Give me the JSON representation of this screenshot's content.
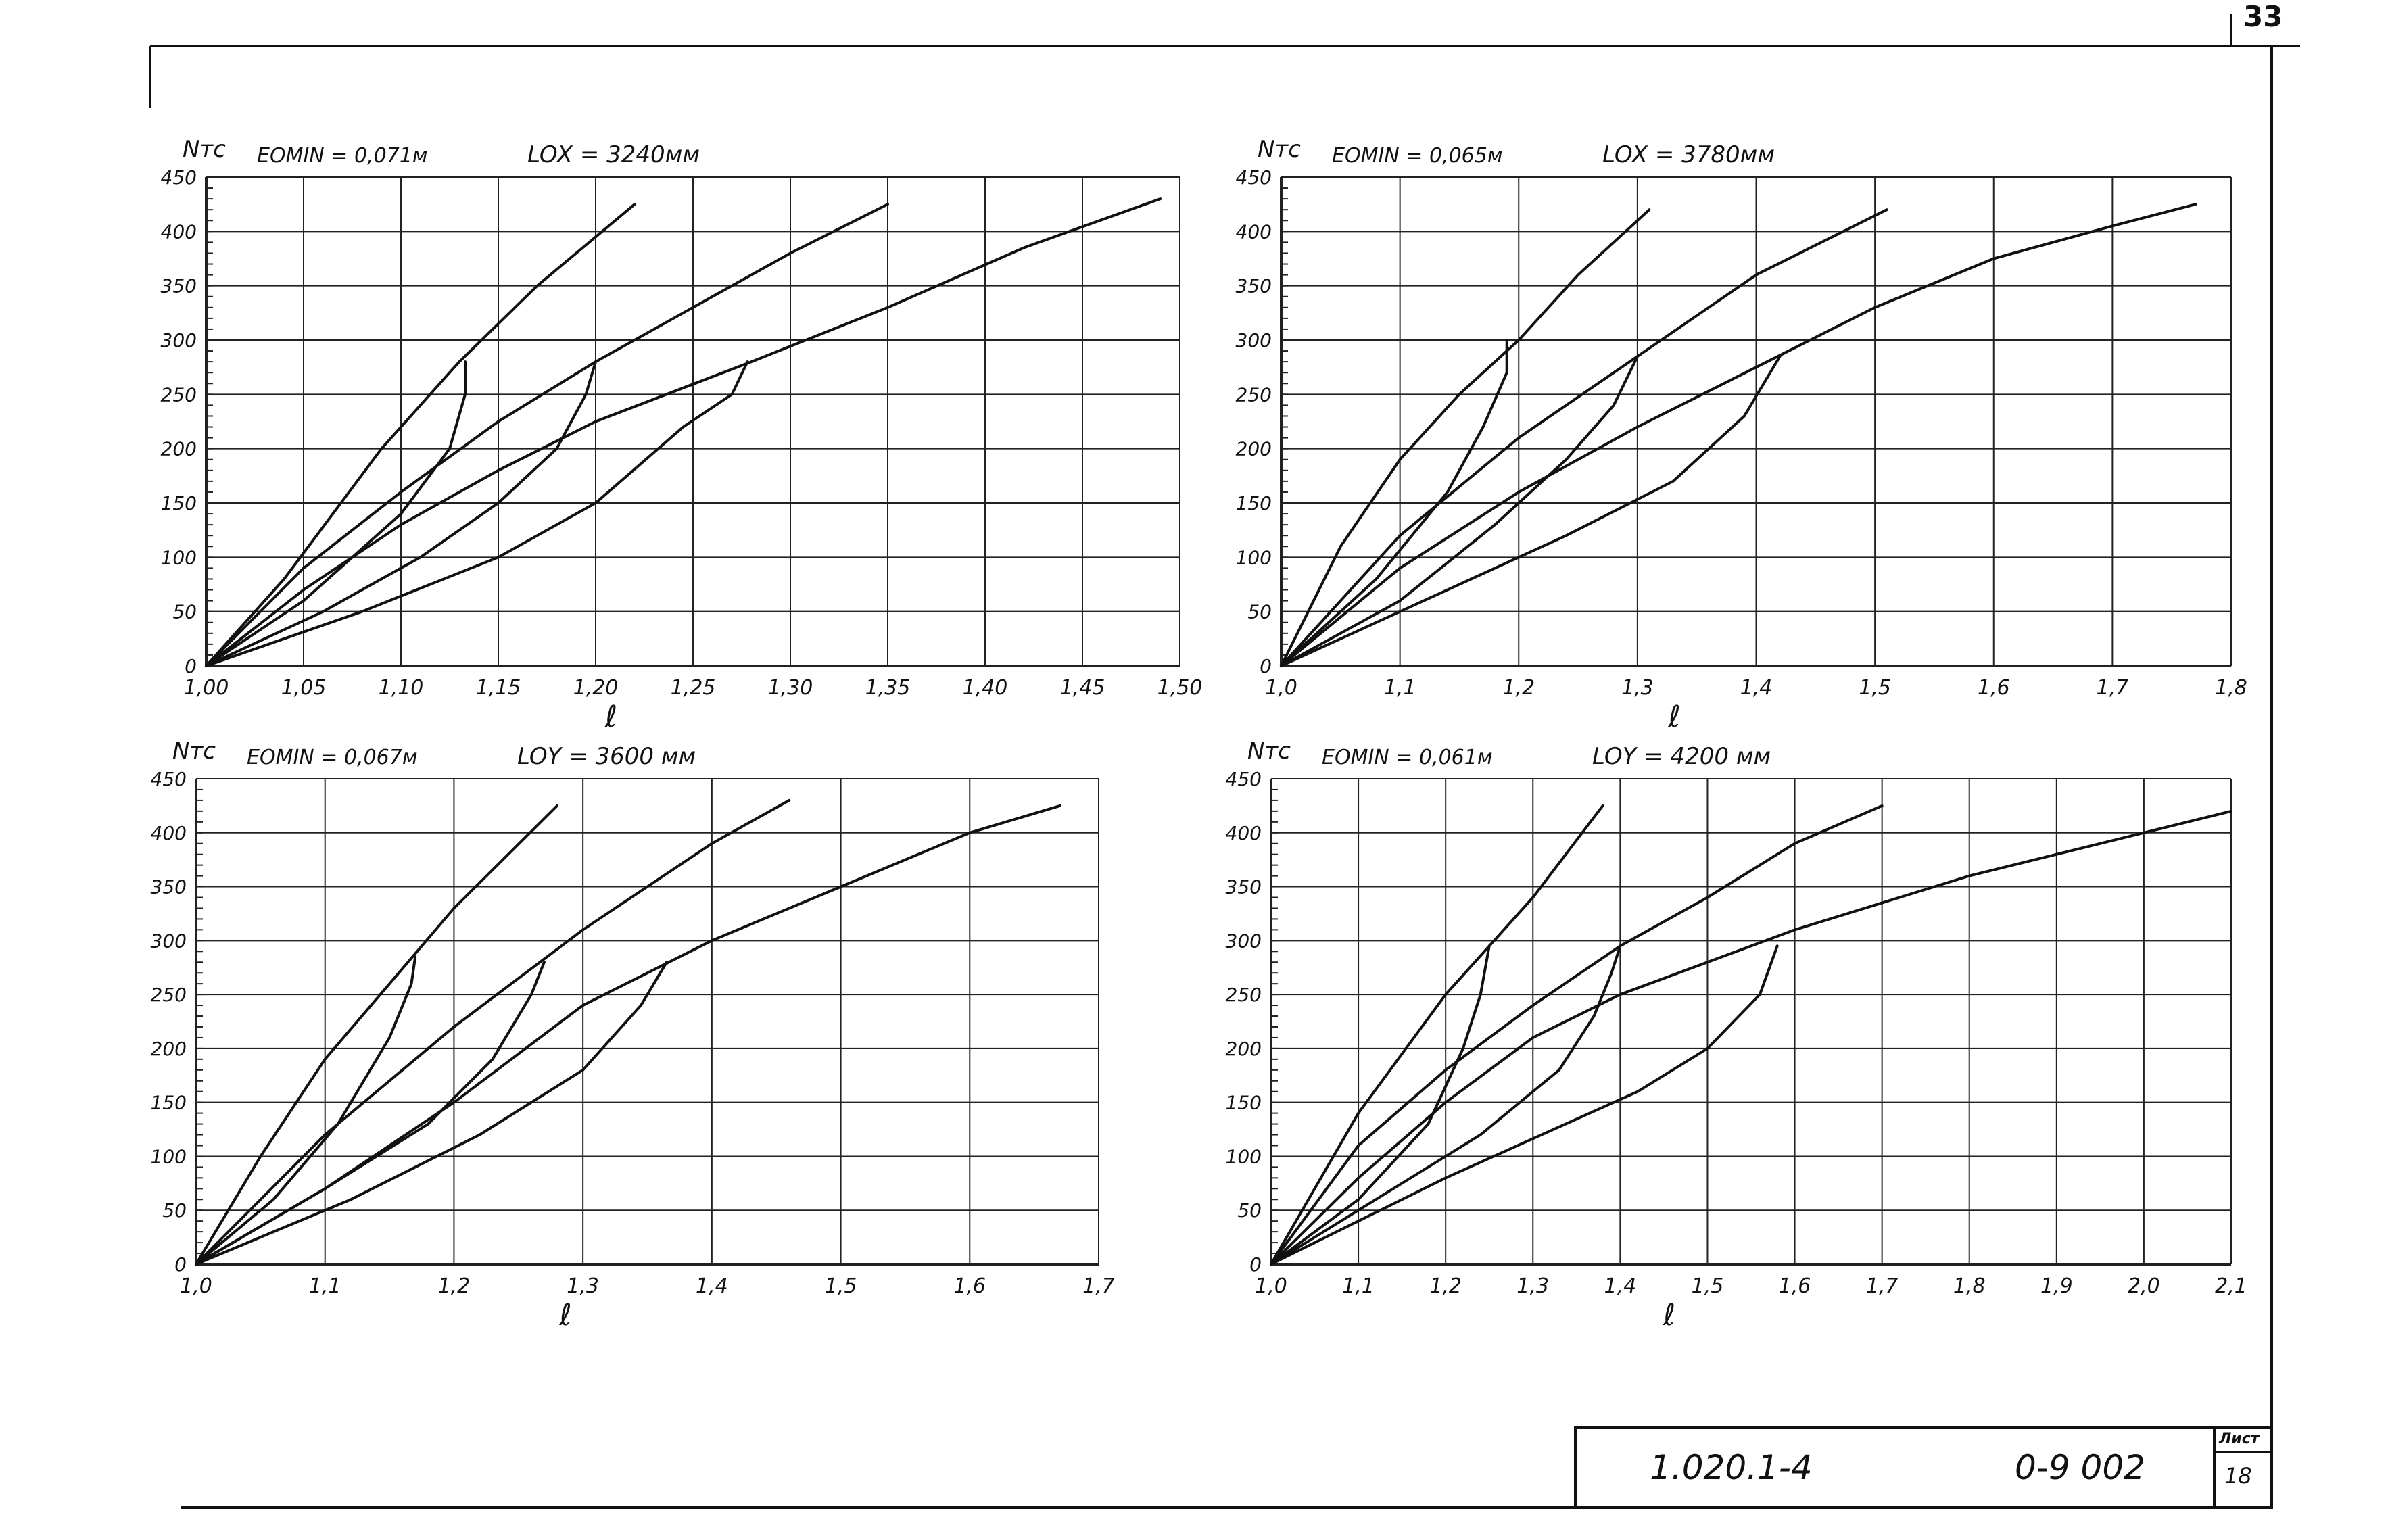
{
  "page_number": "33",
  "title_block": {
    "code_left": "1.020.1-4",
    "code_right": "0-9 002",
    "sheet_label": "Лист",
    "sheet_number": "18"
  },
  "chart_data": [
    {
      "type": "line",
      "ylabel": "Nтс",
      "xlabel": "ℓ",
      "param_left": "EOMIN = 0,071м",
      "param_right": "LOX = 3240мм",
      "xlim": [
        1.0,
        1.5
      ],
      "ylim": [
        0,
        450
      ],
      "x_ticks": [
        1.0,
        1.05,
        1.1,
        1.15,
        1.2,
        1.25,
        1.3,
        1.35,
        1.4,
        1.45,
        1.5
      ],
      "x_tick_labels": [
        "1,00",
        "1,05",
        "1,10",
        "1,15",
        "1,20",
        "1,25",
        "1,30",
        "1,35",
        "1,40",
        "1,45",
        "1,50"
      ],
      "y_ticks": [
        0,
        50,
        100,
        150,
        200,
        250,
        300,
        350,
        400,
        450
      ],
      "y_tick_labels": [
        "0",
        "50",
        "100",
        "150",
        "200",
        "250",
        "300",
        "350",
        "400",
        "450"
      ],
      "grid": true,
      "series": [
        {
          "points": [
            [
              1.0,
              0
            ],
            [
              1.04,
              80
            ],
            [
              1.09,
              200
            ],
            [
              1.13,
              280
            ],
            [
              1.17,
              350
            ],
            [
              1.22,
              425
            ]
          ]
        },
        {
          "points": [
            [
              1.0,
              0
            ],
            [
              1.05,
              90
            ],
            [
              1.1,
              160
            ],
            [
              1.15,
              225
            ],
            [
              1.2,
              280
            ],
            [
              1.25,
              330
            ],
            [
              1.3,
              380
            ],
            [
              1.35,
              425
            ]
          ]
        },
        {
          "points": [
            [
              1.0,
              0
            ],
            [
              1.05,
              70
            ],
            [
              1.1,
              130
            ],
            [
              1.15,
              180
            ],
            [
              1.2,
              225
            ],
            [
              1.28,
              280
            ],
            [
              1.35,
              330
            ],
            [
              1.42,
              385
            ],
            [
              1.49,
              430
            ]
          ]
        },
        {
          "points": [
            [
              1.0,
              0
            ],
            [
              1.05,
              60
            ],
            [
              1.1,
              140
            ],
            [
              1.125,
              200
            ],
            [
              1.133,
              250
            ],
            [
              1.133,
              280
            ]
          ]
        },
        {
          "points": [
            [
              1.0,
              0
            ],
            [
              1.06,
              50
            ],
            [
              1.11,
              100
            ],
            [
              1.15,
              150
            ],
            [
              1.18,
              200
            ],
            [
              1.195,
              250
            ],
            [
              1.2,
              280
            ]
          ]
        },
        {
          "points": [
            [
              1.0,
              0
            ],
            [
              1.08,
              50
            ],
            [
              1.15,
              100
            ],
            [
              1.2,
              150
            ],
            [
              1.245,
              220
            ],
            [
              1.27,
              250
            ],
            [
              1.278,
              280
            ]
          ]
        }
      ]
    },
    {
      "type": "line",
      "ylabel": "Nтс",
      "xlabel": "ℓ",
      "param_left": "EOMIN = 0,065м",
      "param_right": "LOX = 3780мм",
      "xlim": [
        1.0,
        1.8
      ],
      "ylim": [
        0,
        450
      ],
      "x_ticks": [
        1.0,
        1.1,
        1.2,
        1.3,
        1.4,
        1.5,
        1.6,
        1.7,
        1.8
      ],
      "x_tick_labels": [
        "1,0",
        "1,1",
        "1,2",
        "1,3",
        "1,4",
        "1,5",
        "1,6",
        "1,7",
        "1,8"
      ],
      "y_ticks": [
        0,
        50,
        100,
        150,
        200,
        250,
        300,
        350,
        400,
        450
      ],
      "y_tick_labels": [
        "0",
        "50",
        "100",
        "150",
        "200",
        "250",
        "300",
        "350",
        "400",
        "450"
      ],
      "grid": true,
      "series": [
        {
          "points": [
            [
              1.0,
              0
            ],
            [
              1.05,
              110
            ],
            [
              1.1,
              190
            ],
            [
              1.15,
              250
            ],
            [
              1.2,
              300
            ],
            [
              1.25,
              360
            ],
            [
              1.31,
              420
            ]
          ]
        },
        {
          "points": [
            [
              1.0,
              0
            ],
            [
              1.1,
              120
            ],
            [
              1.2,
              210
            ],
            [
              1.3,
              285
            ],
            [
              1.4,
              360
            ],
            [
              1.51,
              420
            ]
          ]
        },
        {
          "points": [
            [
              1.0,
              0
            ],
            [
              1.1,
              90
            ],
            [
              1.2,
              160
            ],
            [
              1.3,
              220
            ],
            [
              1.4,
              275
            ],
            [
              1.5,
              330
            ],
            [
              1.6,
              375
            ],
            [
              1.7,
              405
            ],
            [
              1.77,
              425
            ]
          ]
        },
        {
          "points": [
            [
              1.0,
              0
            ],
            [
              1.08,
              80
            ],
            [
              1.14,
              160
            ],
            [
              1.17,
              220
            ],
            [
              1.19,
              270
            ],
            [
              1.19,
              300
            ]
          ]
        },
        {
          "points": [
            [
              1.0,
              0
            ],
            [
              1.1,
              60
            ],
            [
              1.18,
              130
            ],
            [
              1.24,
              190
            ],
            [
              1.28,
              240
            ],
            [
              1.3,
              285
            ]
          ]
        },
        {
          "points": [
            [
              1.0,
              0
            ],
            [
              1.12,
              60
            ],
            [
              1.24,
              120
            ],
            [
              1.33,
              170
            ],
            [
              1.39,
              230
            ],
            [
              1.42,
              285
            ]
          ]
        }
      ]
    },
    {
      "type": "line",
      "ylabel": "Nтс",
      "xlabel": "ℓ",
      "param_left": "EOMIN = 0,067м",
      "param_right": "LOY = 3600 мм",
      "xlim": [
        1.0,
        1.7
      ],
      "ylim": [
        0,
        450
      ],
      "x_ticks": [
        1.0,
        1.1,
        1.2,
        1.3,
        1.4,
        1.5,
        1.6,
        1.7
      ],
      "x_tick_labels": [
        "1,0",
        "1,1",
        "1,2",
        "1,3",
        "1,4",
        "1,5",
        "1,6",
        "1,7"
      ],
      "y_ticks": [
        0,
        50,
        100,
        150,
        200,
        250,
        300,
        350,
        400,
        450
      ],
      "y_tick_labels": [
        "0",
        "50",
        "100",
        "150",
        "200",
        "250",
        "300",
        "350",
        "400",
        "450"
      ],
      "grid": true,
      "series": [
        {
          "points": [
            [
              1.0,
              0
            ],
            [
              1.05,
              100
            ],
            [
              1.1,
              190
            ],
            [
              1.15,
              260
            ],
            [
              1.2,
              330
            ],
            [
              1.28,
              425
            ]
          ]
        },
        {
          "points": [
            [
              1.0,
              0
            ],
            [
              1.05,
              60
            ],
            [
              1.1,
              120
            ],
            [
              1.2,
              220
            ],
            [
              1.3,
              310
            ],
            [
              1.4,
              390
            ],
            [
              1.46,
              430
            ]
          ]
        },
        {
          "points": [
            [
              1.0,
              0
            ],
            [
              1.1,
              70
            ],
            [
              1.2,
              150
            ],
            [
              1.3,
              240
            ],
            [
              1.4,
              300
            ],
            [
              1.5,
              350
            ],
            [
              1.6,
              400
            ],
            [
              1.67,
              425
            ]
          ]
        },
        {
          "points": [
            [
              1.0,
              0
            ],
            [
              1.06,
              60
            ],
            [
              1.11,
              130
            ],
            [
              1.15,
              210
            ],
            [
              1.167,
              260
            ],
            [
              1.17,
              285
            ]
          ]
        },
        {
          "points": [
            [
              1.0,
              0
            ],
            [
              1.1,
              70
            ],
            [
              1.18,
              130
            ],
            [
              1.23,
              190
            ],
            [
              1.26,
              250
            ],
            [
              1.27,
              280
            ]
          ]
        },
        {
          "points": [
            [
              1.0,
              0
            ],
            [
              1.12,
              60
            ],
            [
              1.22,
              120
            ],
            [
              1.3,
              180
            ],
            [
              1.345,
              240
            ],
            [
              1.365,
              280
            ]
          ]
        }
      ]
    },
    {
      "type": "line",
      "ylabel": "Nтс",
      "xlabel": "ℓ",
      "param_left": "EOMIN = 0,061м",
      "param_right": "LOY = 4200 мм",
      "xlim": [
        1.0,
        2.1
      ],
      "ylim": [
        0,
        450
      ],
      "x_ticks": [
        1.0,
        1.1,
        1.2,
        1.3,
        1.4,
        1.5,
        1.6,
        1.7,
        1.8,
        1.9,
        2.0,
        2.1
      ],
      "x_tick_labels": [
        "1,0",
        "1,1",
        "1,2",
        "1,3",
        "1,4",
        "1,5",
        "1,6",
        "1,7",
        "1,8",
        "1,9",
        "2,0",
        "2,1"
      ],
      "y_ticks": [
        0,
        50,
        100,
        150,
        200,
        250,
        300,
        350,
        400,
        450
      ],
      "y_tick_labels": [
        "0",
        "50",
        "100",
        "150",
        "200",
        "250",
        "300",
        "350",
        "400",
        "450"
      ],
      "grid": true,
      "series": [
        {
          "points": [
            [
              1.0,
              0
            ],
            [
              1.05,
              70
            ],
            [
              1.1,
              140
            ],
            [
              1.2,
              250
            ],
            [
              1.3,
              340
            ],
            [
              1.38,
              425
            ]
          ]
        },
        {
          "points": [
            [
              1.0,
              0
            ],
            [
              1.1,
              110
            ],
            [
              1.2,
              180
            ],
            [
              1.3,
              240
            ],
            [
              1.4,
              295
            ],
            [
              1.5,
              340
            ],
            [
              1.6,
              390
            ],
            [
              1.7,
              425
            ]
          ]
        },
        {
          "points": [
            [
              1.0,
              0
            ],
            [
              1.1,
              80
            ],
            [
              1.2,
              150
            ],
            [
              1.3,
              210
            ],
            [
              1.4,
              250
            ],
            [
              1.5,
              280
            ],
            [
              1.6,
              310
            ],
            [
              1.8,
              360
            ],
            [
              2.0,
              400
            ],
            [
              2.1,
              420
            ]
          ]
        },
        {
          "points": [
            [
              1.0,
              0
            ],
            [
              1.1,
              60
            ],
            [
              1.18,
              130
            ],
            [
              1.22,
              200
            ],
            [
              1.24,
              250
            ],
            [
              1.25,
              295
            ]
          ]
        },
        {
          "points": [
            [
              1.0,
              0
            ],
            [
              1.1,
              50
            ],
            [
              1.24,
              120
            ],
            [
              1.33,
              180
            ],
            [
              1.37,
              230
            ],
            [
              1.39,
              270
            ],
            [
              1.4,
              295
            ]
          ]
        },
        {
          "points": [
            [
              1.0,
              0
            ],
            [
              1.2,
              80
            ],
            [
              1.42,
              160
            ],
            [
              1.5,
              200
            ],
            [
              1.56,
              250
            ],
            [
              1.58,
              295
            ]
          ]
        }
      ]
    }
  ]
}
